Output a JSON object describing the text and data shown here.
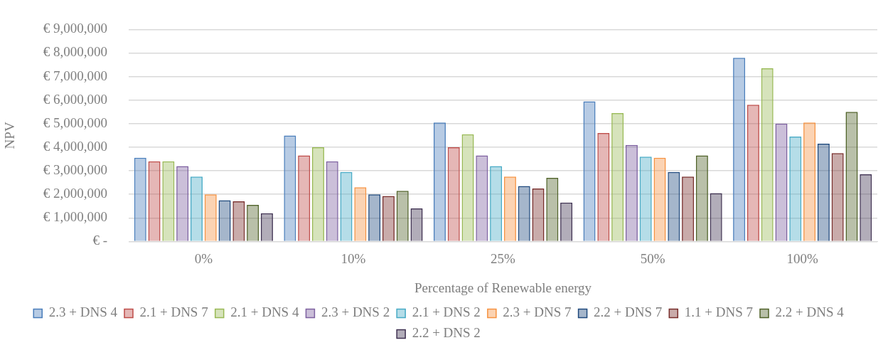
{
  "chart_data": {
    "type": "bar",
    "xlabel": "Percentage of Renewable energy",
    "ylabel": "NPV",
    "categories": [
      "0%",
      "10%",
      "25%",
      "50%",
      "100%"
    ],
    "ylim": [
      0,
      9000000
    ],
    "yticks": [
      {
        "value": 0,
        "label": "€ -"
      },
      {
        "value": 1000000,
        "label": "€ 1,000,000"
      },
      {
        "value": 2000000,
        "label": "€ 2,000,000"
      },
      {
        "value": 3000000,
        "label": "€ 3,000,000"
      },
      {
        "value": 4000000,
        "label": "€ 4,000,000"
      },
      {
        "value": 5000000,
        "label": "€ 5,000,000"
      },
      {
        "value": 6000000,
        "label": "€ 6,000,000"
      },
      {
        "value": 7000000,
        "label": "€ 7,000,000"
      },
      {
        "value": 8000000,
        "label": "€ 8,000,000"
      },
      {
        "value": 9000000,
        "label": "€ 9,000,000"
      }
    ],
    "grid": "y",
    "legend": "bottom",
    "series": [
      {
        "name": "2.3 + DNS 4",
        "color": "#4a7ebb",
        "values": [
          3550000,
          4500000,
          5050000,
          5950000,
          7800000
        ]
      },
      {
        "name": "2.1 + DNS 7",
        "color": "#be4b48",
        "values": [
          3400000,
          3650000,
          4000000,
          4600000,
          5800000
        ]
      },
      {
        "name": "2.1 + DNS 4",
        "color": "#98b954",
        "values": [
          3400000,
          4000000,
          4550000,
          5450000,
          7350000
        ]
      },
      {
        "name": "2.3 + DNS 2",
        "color": "#7d60a0",
        "values": [
          3200000,
          3400000,
          3650000,
          4100000,
          5000000
        ]
      },
      {
        "name": "2.1 + DNS 2",
        "color": "#46aac5",
        "values": [
          2750000,
          2950000,
          3200000,
          3600000,
          4450000
        ]
      },
      {
        "name": "2.3 + DNS 7",
        "color": "#f69240",
        "values": [
          2000000,
          2300000,
          2750000,
          3550000,
          5050000
        ]
      },
      {
        "name": "2.2 + DNS 7",
        "color": "#1f497d",
        "values": [
          1750000,
          2000000,
          2350000,
          2950000,
          4150000
        ]
      },
      {
        "name": "1.1 + DNS 7",
        "color": "#772c2a",
        "values": [
          1700000,
          1930000,
          2250000,
          2750000,
          3750000
        ]
      },
      {
        "name": "2.2 + DNS 4",
        "color": "#4f6228",
        "values": [
          1550000,
          2150000,
          2700000,
          3650000,
          5500000
        ]
      },
      {
        "name": "2.2 + DNS 2",
        "color": "#3f3151",
        "values": [
          1200000,
          1400000,
          1650000,
          2050000,
          2850000
        ]
      }
    ]
  }
}
